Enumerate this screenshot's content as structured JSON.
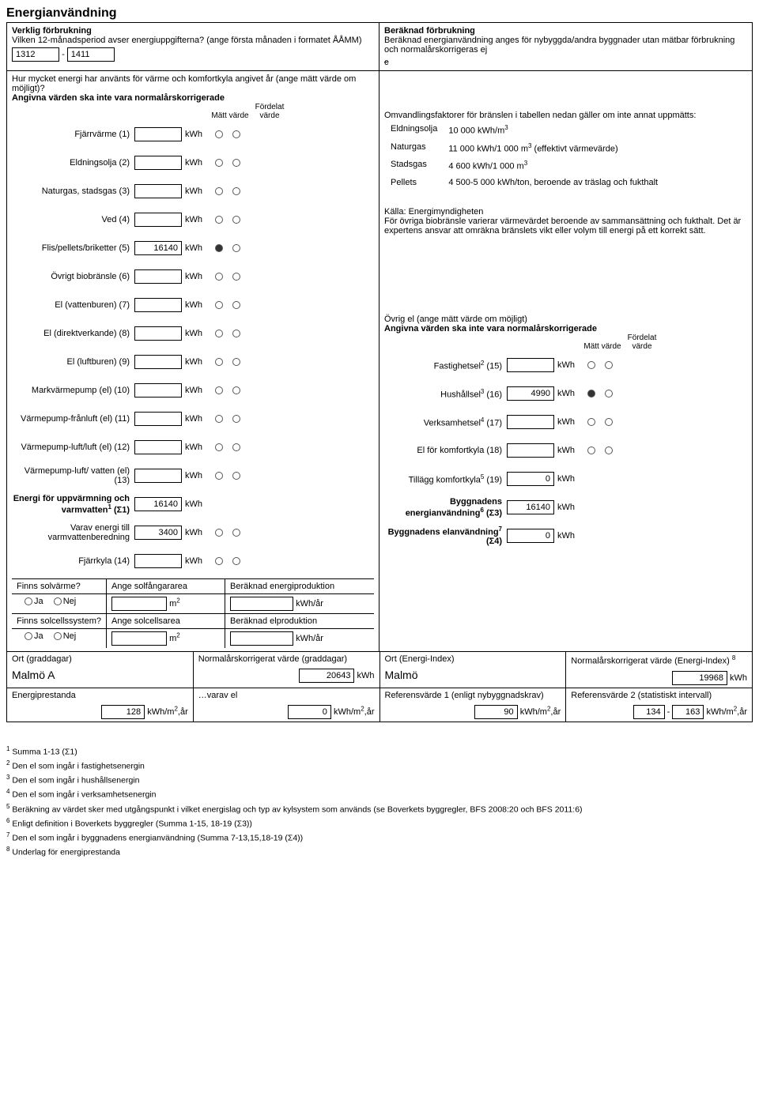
{
  "title": "Energianvändning",
  "actual": {
    "heading": "Verklig förbrukning",
    "period_q": "Vilken 12-månadsperiod avser energiuppgifterna? (ange första månaden i formatet ÅÅMM)",
    "period_from": "1312",
    "period_sep": "-",
    "period_to": "1411",
    "q2": "Hur mycket energi har använts för värme och komfortkyla angivet år (ange mätt värde om möjligt)?",
    "q3": "Angivna värden ska inte vara normalårskorrigerade",
    "col_matt": "Mätt värde",
    "col_fordelat": "Fördelat värde",
    "rows": [
      {
        "label": "Fjärrvärme (1)",
        "value": "",
        "unit": "kWh",
        "m": false,
        "f": false
      },
      {
        "label": "Eldningsolja (2)",
        "value": "",
        "unit": "kWh",
        "m": false,
        "f": false
      },
      {
        "label": "Naturgas, stadsgas (3)",
        "value": "",
        "unit": "kWh",
        "m": false,
        "f": false
      },
      {
        "label": "Ved (4)",
        "value": "",
        "unit": "kWh",
        "m": false,
        "f": false
      },
      {
        "label": "Flis/pellets/briketter (5)",
        "value": "16140",
        "unit": "kWh",
        "m": true,
        "f": false
      },
      {
        "label": "Övrigt biobränsle (6)",
        "value": "",
        "unit": "kWh",
        "m": false,
        "f": false
      },
      {
        "label": "El (vattenburen) (7)",
        "value": "",
        "unit": "kWh",
        "m": false,
        "f": false
      },
      {
        "label": "El (direktverkande) (8)",
        "value": "",
        "unit": "kWh",
        "m": false,
        "f": false
      },
      {
        "label": "El (luftburen) (9)",
        "value": "",
        "unit": "kWh",
        "m": false,
        "f": false
      },
      {
        "label": "Markvärmepump (el) (10)",
        "value": "",
        "unit": "kWh",
        "m": false,
        "f": false
      },
      {
        "label": "Värmepump-frånluft (el) (11)",
        "value": "",
        "unit": "kWh",
        "m": false,
        "f": false
      },
      {
        "label": "Värmepump-luft/luft (el) (12)",
        "value": "",
        "unit": "kWh",
        "m": false,
        "f": false
      },
      {
        "label": "Värmepump-luft/ vatten (el) (13)",
        "value": "",
        "unit": "kWh",
        "m": false,
        "f": false
      }
    ],
    "sum_label": "Energi för uppvärmning och varmvatten",
    "sum_sup": "1",
    "sum_suffix": " (Σ1)",
    "sum_value": "16140",
    "sum_unit": "kWh",
    "varav_label": "Varav energi till varmvattenberedning",
    "varav_value": "3400",
    "varav_unit": "kWh",
    "fjarrkyla_label": "Fjärrkyla (14)",
    "fjarrkyla_value": "",
    "fjarrkyla_unit": "kWh"
  },
  "estimated": {
    "heading": "Beräknad förbrukning",
    "text": "Beräknad energianvändning anges för nybyggda/andra byggnader utan mätbar förbrukning och normalårskorrigeras ej",
    "strike": "c",
    "factors_intro": "Omvandlingsfaktorer för bränslen i tabellen nedan gäller om inte annat uppmätts:",
    "factors": [
      {
        "name": "Eldningsolja",
        "value": "10 000 kWh/m",
        "sup": "3",
        "tail": ""
      },
      {
        "name": "Naturgas",
        "value": "11 000 kWh/1 000 m",
        "sup": "3",
        "tail": " (effektivt värmevärde)"
      },
      {
        "name": "Stadsgas",
        "value": "4 600 kWh/1 000 m",
        "sup": "3",
        "tail": ""
      },
      {
        "name": "Pellets",
        "value": "4 500-5 000 kWh/ton, beroende av träslag och fukthalt",
        "sup": "",
        "tail": ""
      }
    ],
    "source": "Källa: Energimyndigheten",
    "note": "För övriga biobränsle varierar värmevärdet beroende av sammansättning och fukthalt. Det är expertens ansvar att omräkna bränslets vikt eller volym till energi på ett korrekt sätt."
  },
  "ovrig_el": {
    "heading": "Övrig el (ange mätt värde om möjligt)",
    "sub": "Angivna värden ska inte vara normalårskorrigerade",
    "col_matt": "Mätt värde",
    "col_fordelat": "Fördelat värde",
    "rows": [
      {
        "label": "Fastighetsel",
        "sup": "2",
        "suffix": " (15)",
        "value": "",
        "unit": "kWh",
        "m": false,
        "f": false
      },
      {
        "label": "Hushållsel",
        "sup": "3",
        "suffix": " (16)",
        "value": "4990",
        "unit": "kWh",
        "m": true,
        "f": false
      },
      {
        "label": "Verksamhetsel",
        "sup": "4",
        "suffix": " (17)",
        "value": "",
        "unit": "kWh",
        "m": false,
        "f": false
      },
      {
        "label": "El för komfortkyla (18)",
        "sup": "",
        "suffix": "",
        "value": "",
        "unit": "kWh",
        "m": false,
        "f": false
      }
    ],
    "tillagg_label": "Tillägg komfortkyla",
    "tillagg_sup": "5",
    "tillagg_suffix": " (19)",
    "tillagg_value": "0",
    "tillagg_unit": "kWh",
    "s3_label": "Byggnadens energianvändning",
    "s3_sup": "6",
    "s3_suffix": " (Σ3)",
    "s3_value": "16140",
    "s3_unit": "kWh",
    "s4_label": "Byggnadens elanvändning",
    "s4_sup": "7",
    "s4_suffix": " (Σ4)",
    "s4_value": "0",
    "s4_unit": "kWh"
  },
  "solar": {
    "q1": "Finns solvärme?",
    "area1_label": "Ange solfångararea",
    "prod1_label": "Beräknad energiproduktion",
    "q2": "Finns solcellssystem?",
    "area2_label": "Ange solcellsarea",
    "prod2_label": "Beräknad elproduktion",
    "ja": "Ja",
    "nej": "Nej",
    "m2": "m",
    "m2_sup": "2",
    "kwh_ar": "kWh/år"
  },
  "orts": {
    "ort_grad_label": "Ort (graddagar)",
    "ort_grad_value": "Malmö A",
    "norm_grad_label": "Normalårskorrigerat värde (graddagar)",
    "norm_grad_value": "20643",
    "norm_grad_unit": "kWh",
    "ort_ei_label": "Ort (Energi-Index)",
    "ort_ei_value": "Malmö",
    "norm_ei_label": "Normalårskorrigerat värde (Energi-Index)",
    "norm_ei_sup": "8",
    "norm_ei_value": "19968",
    "norm_ei_unit": "kWh"
  },
  "perf": {
    "ep_label": "Energiprestanda",
    "ep_value": "128",
    "ep_unit": "kWh/m",
    "ep_unit_sup": "2",
    "ep_unit_tail": ",år",
    "varav_label": "…varav el",
    "varav_value": "0",
    "ref1_label": "Referensvärde 1 (enligt nybyggnadskrav)",
    "ref1_value": "90",
    "ref2_label": "Referensvärde 2 (statistiskt intervall)",
    "ref2_lo": "134",
    "ref2_sep": "-",
    "ref2_hi": "163"
  },
  "footnotes": [
    "Summa 1-13 (Σ1)",
    "Den el som ingår i fastighetsenergin",
    "Den el som ingår i hushållsenergin",
    "Den el som ingår i verksamhetsenergin",
    "Beräkning av värdet sker med utgångspunkt i vilket energislag och typ av kylsystem som används (se Boverkets byggregler, BFS 2008:20 och BFS 2011:6)",
    "Enligt definition i Boverkets byggregler (Summa 1-15, 18-19 (Σ3))",
    "Den el som ingår i byggnadens energianvändning (Summa 7-13,15,18-19 (Σ4))",
    "Underlag för energiprestanda"
  ]
}
